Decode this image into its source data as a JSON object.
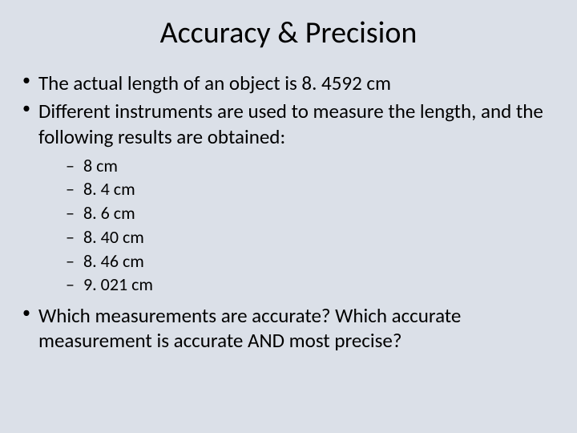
{
  "background_color": "#dbe0e8",
  "text_color": "#000000",
  "font_family": "Calibri",
  "title": {
    "text": "Accuracy & Precision",
    "fontsize": 38,
    "align": "center"
  },
  "bullets": [
    {
      "text": "The actual length of an object is 8. 4592 cm",
      "fontsize": 25
    },
    {
      "text": "Different instruments are used to measure the length, and the following results are obtained:",
      "fontsize": 25,
      "sub": [
        {
          "text": "8 cm",
          "fontsize": 22
        },
        {
          "text": "8. 4 cm",
          "fontsize": 22
        },
        {
          "text": "8. 6 cm",
          "fontsize": 22
        },
        {
          "text": "8. 40 cm",
          "fontsize": 22
        },
        {
          "text": "8. 46 cm",
          "fontsize": 22
        },
        {
          "text": "9. 021 cm",
          "fontsize": 22
        }
      ]
    },
    {
      "text": "Which measurements are accurate?  Which accurate measurement is accurate AND most precise?",
      "fontsize": 25
    }
  ]
}
